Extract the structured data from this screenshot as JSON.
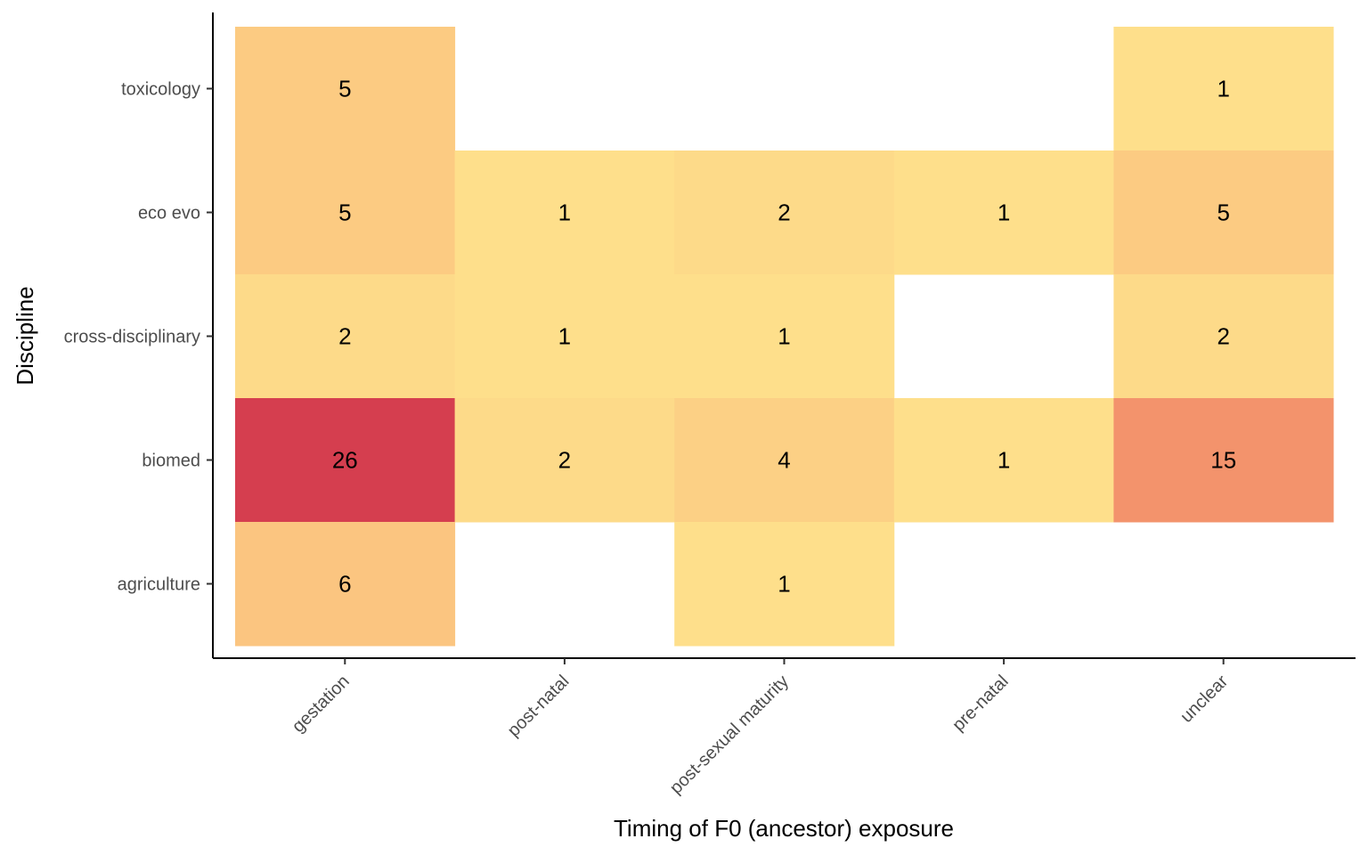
{
  "chart_data": {
    "type": "heatmap",
    "title": "",
    "xlabel": "Timing of F0 (ancestor) exposure",
    "ylabel": "Discipline",
    "x_categories": [
      "gestation",
      "post-natal",
      "post-sexual maturity",
      "pre-natal",
      "unclear"
    ],
    "y_categories": [
      "toxicology",
      "eco evo",
      "cross-disciplinary",
      "biomed",
      "agriculture"
    ],
    "cells": [
      {
        "x": "gestation",
        "y": "toxicology",
        "value": 5
      },
      {
        "x": "unclear",
        "y": "toxicology",
        "value": 1
      },
      {
        "x": "gestation",
        "y": "eco evo",
        "value": 5
      },
      {
        "x": "post-natal",
        "y": "eco evo",
        "value": 1
      },
      {
        "x": "post-sexual maturity",
        "y": "eco evo",
        "value": 2
      },
      {
        "x": "pre-natal",
        "y": "eco evo",
        "value": 1
      },
      {
        "x": "unclear",
        "y": "eco evo",
        "value": 5
      },
      {
        "x": "gestation",
        "y": "cross-disciplinary",
        "value": 2
      },
      {
        "x": "post-natal",
        "y": "cross-disciplinary",
        "value": 1
      },
      {
        "x": "post-sexual maturity",
        "y": "cross-disciplinary",
        "value": 1
      },
      {
        "x": "unclear",
        "y": "cross-disciplinary",
        "value": 2
      },
      {
        "x": "gestation",
        "y": "biomed",
        "value": 26
      },
      {
        "x": "post-natal",
        "y": "biomed",
        "value": 2
      },
      {
        "x": "post-sexual maturity",
        "y": "biomed",
        "value": 4
      },
      {
        "x": "pre-natal",
        "y": "biomed",
        "value": 1
      },
      {
        "x": "unclear",
        "y": "biomed",
        "value": 15
      },
      {
        "x": "gestation",
        "y": "agriculture",
        "value": 6
      },
      {
        "x": "post-sexual maturity",
        "y": "agriculture",
        "value": 1
      }
    ],
    "color_scale": {
      "low": "#fedf8b",
      "mid": "#f79f70",
      "high": "#d53e4f",
      "min": 1,
      "max": 26
    },
    "legend": "none",
    "grid": false
  }
}
